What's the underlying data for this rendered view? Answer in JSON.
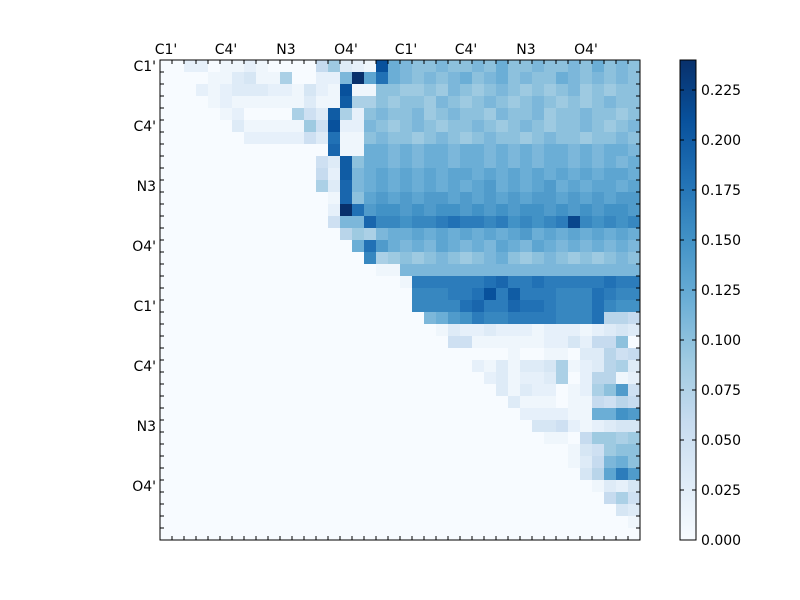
{
  "chart_data": {
    "type": "heatmap",
    "title": "",
    "xlabel": "",
    "ylabel": "",
    "rows": 40,
    "cols": 40,
    "x_tick_labels": [
      "C1'",
      "C4'",
      "N3",
      "O4'",
      "C1'",
      "C4'",
      "N3",
      "O4'"
    ],
    "y_tick_labels": [
      "C1'",
      "C4'",
      "N3",
      "O4'",
      "C1'",
      "C4'",
      "N3",
      "O4'"
    ],
    "tick_positions": [
      0,
      5,
      10,
      15,
      20,
      25,
      30,
      35
    ],
    "x_tick_axis_position": "top",
    "colorbar": {
      "colormap": "Blues",
      "vmin": 0.0,
      "vmax": 0.24,
      "ticks": [
        0.0,
        0.025,
        0.05,
        0.075,
        0.1,
        0.125,
        0.15,
        0.175,
        0.2,
        0.225
      ],
      "tick_labels": [
        "0.000",
        "0.025",
        "0.050",
        "0.075",
        "0.100",
        "0.125",
        "0.150",
        "0.175",
        "0.200",
        "0.225"
      ],
      "colors": [
        "#f7fbff",
        "#deebf7",
        "#c6dbef",
        "#9ecae1",
        "#6baed6",
        "#4292c6",
        "#2171b5",
        "#08519c",
        "#08306b"
      ]
    },
    "matrix_storage": "upper triangle only (lower triangle and diagonal are 0); rows_upper[i] holds values for columns i+1 .. 39",
    "rows_upper": [
      [
        0,
        0.02,
        0.02,
        0,
        0.01,
        0.01,
        0.02,
        0.01,
        0,
        0,
        0,
        0,
        0.06,
        0.09,
        0.03,
        0.02,
        0.01,
        0.21,
        0.12,
        0.11,
        0.1,
        0.1,
        0.11,
        0.1,
        0.1,
        0.11,
        0.1,
        0.12,
        0.1,
        0.1,
        0.11,
        0.1,
        0.1,
        0.11,
        0.1,
        0.12,
        0.1,
        0.11,
        0.1
      ],
      [
        0,
        0,
        0.01,
        0.01,
        0.03,
        0.04,
        0.01,
        0.01,
        0.08,
        0,
        0,
        0.02,
        0.02,
        0.11,
        0.24,
        0.13,
        0.18,
        0.12,
        0.11,
        0.1,
        0.11,
        0.1,
        0.11,
        0.12,
        0.1,
        0.11,
        0.12,
        0.1,
        0.11,
        0.1,
        0.1,
        0.12,
        0.11,
        0.1,
        0.11,
        0.1,
        0.11,
        0.1
      ],
      [
        0.02,
        0.01,
        0.02,
        0.03,
        0.03,
        0.03,
        0.02,
        0.02,
        0.01,
        0.04,
        0.02,
        0.01,
        0.21,
        0.01,
        0.01,
        0.1,
        0.1,
        0.09,
        0.09,
        0.1,
        0.09,
        0.11,
        0.1,
        0.09,
        0.1,
        0.11,
        0.1,
        0.09,
        0.1,
        0.09,
        0.1,
        0.11,
        0.09,
        0.1,
        0.09,
        0.1,
        0.1
      ],
      [
        0.01,
        0.02,
        0.01,
        0.01,
        0.01,
        0.01,
        0.01,
        0.01,
        0.03,
        0.01,
        0.01,
        0.2,
        0.08,
        0.08,
        0.1,
        0.09,
        0.1,
        0.1,
        0.09,
        0.11,
        0.1,
        0.09,
        0.1,
        0.11,
        0.1,
        0.09,
        0.1,
        0.11,
        0.1,
        0.09,
        0.1,
        0.09,
        0.1,
        0.11,
        0.1,
        0.1
      ],
      [
        0.01,
        0.02,
        0,
        0,
        0,
        0,
        0.08,
        0.05,
        0.03,
        0.2,
        0.08,
        0.02,
        0.1,
        0.11,
        0.1,
        0.1,
        0.11,
        0.09,
        0.1,
        0.11,
        0.1,
        0.1,
        0.09,
        0.11,
        0.1,
        0.1,
        0.11,
        0.09,
        0.1,
        0.1,
        0.11,
        0.1,
        0.1,
        0.09,
        0.1
      ],
      [
        0.03,
        0.01,
        0.01,
        0.01,
        0.01,
        0.01,
        0.09,
        0.05,
        0.21,
        0.02,
        0.02,
        0.11,
        0.1,
        0.09,
        0.1,
        0.11,
        0.1,
        0.09,
        0.1,
        0.1,
        0.11,
        0.1,
        0.09,
        0.1,
        0.11,
        0.1,
        0.09,
        0.1,
        0.1,
        0.11,
        0.1,
        0.09,
        0.1,
        0.11
      ],
      [
        0.02,
        0.02,
        0.02,
        0.02,
        0.02,
        0.05,
        0.03,
        0.18,
        0.01,
        0.01,
        0.1,
        0.11,
        0.1,
        0.1,
        0.09,
        0.1,
        0.11,
        0.1,
        0.09,
        0.1,
        0.11,
        0.1,
        0.1,
        0.09,
        0.1,
        0.11,
        0.1,
        0.1,
        0.09,
        0.1,
        0.1,
        0.11,
        0.1
      ],
      [
        0,
        0,
        0,
        0,
        0,
        0,
        0.19,
        0.01,
        0.01,
        0.12,
        0.12,
        0.11,
        0.12,
        0.11,
        0.12,
        0.12,
        0.11,
        0.12,
        0.12,
        0.11,
        0.12,
        0.11,
        0.12,
        0.11,
        0.12,
        0.12,
        0.11,
        0.12,
        0.11,
        0.12,
        0.12,
        0.11
      ],
      [
        0,
        0,
        0,
        0,
        0.05,
        0.03,
        0.2,
        0.1,
        0.12,
        0.12,
        0.11,
        0.12,
        0.11,
        0.12,
        0.12,
        0.11,
        0.12,
        0.12,
        0.11,
        0.12,
        0.11,
        0.12,
        0.11,
        0.12,
        0.12,
        0.11,
        0.12,
        0.11,
        0.12,
        0.11,
        0.12
      ],
      [
        0,
        0,
        0,
        0.06,
        0.02,
        0.2,
        0.11,
        0.12,
        0.13,
        0.12,
        0.13,
        0.12,
        0.13,
        0.12,
        0.13,
        0.13,
        0.12,
        0.13,
        0.12,
        0.13,
        0.12,
        0.13,
        0.12,
        0.13,
        0.12,
        0.13,
        0.12,
        0.13,
        0.13,
        0.12
      ],
      [
        0,
        0,
        0.08,
        0.03,
        0.19,
        0.11,
        0.12,
        0.13,
        0.12,
        0.13,
        0.12,
        0.13,
        0.12,
        0.13,
        0.12,
        0.13,
        0.14,
        0.12,
        0.13,
        0.12,
        0.13,
        0.14,
        0.12,
        0.13,
        0.12,
        0.13,
        0.13,
        0.12,
        0.13
      ],
      [
        0,
        0,
        0.01,
        0.19,
        0.1,
        0.13,
        0.14,
        0.13,
        0.14,
        0.13,
        0.14,
        0.14,
        0.13,
        0.14,
        0.13,
        0.14,
        0.13,
        0.14,
        0.13,
        0.14,
        0.14,
        0.13,
        0.14,
        0.13,
        0.14,
        0.13,
        0.14,
        0.14
      ],
      [
        0,
        0.02,
        0.24,
        0.18,
        0.14,
        0.15,
        0.15,
        0.14,
        0.15,
        0.14,
        0.15,
        0.15,
        0.14,
        0.15,
        0.14,
        0.15,
        0.14,
        0.15,
        0.15,
        0.14,
        0.15,
        0.14,
        0.15,
        0.14,
        0.15,
        0.15,
        0.14
      ],
      [
        0.05,
        0.11,
        0.11,
        0.19,
        0.16,
        0.16,
        0.15,
        0.16,
        0.16,
        0.17,
        0.18,
        0.17,
        0.17,
        0.16,
        0.17,
        0.15,
        0.16,
        0.15,
        0.16,
        0.17,
        0.22,
        0.16,
        0.15,
        0.16,
        0.15,
        0.16
      ],
      [
        0.07,
        0.09,
        0.08,
        0.11,
        0.12,
        0.12,
        0.13,
        0.12,
        0.13,
        0.12,
        0.13,
        0.12,
        0.13,
        0.12,
        0.13,
        0.14,
        0.12,
        0.13,
        0.12,
        0.13,
        0.12,
        0.13,
        0.12,
        0.13,
        0.12
      ],
      [
        0.12,
        0.18,
        0.14,
        0.12,
        0.11,
        0.12,
        0.11,
        0.13,
        0.12,
        0.11,
        0.12,
        0.11,
        0.13,
        0.12,
        0.11,
        0.13,
        0.12,
        0.11,
        0.12,
        0.11,
        0.12,
        0.11,
        0.12,
        0.11
      ],
      [
        0.16,
        0.08,
        0.09,
        0.1,
        0.09,
        0.1,
        0.11,
        0.1,
        0.09,
        0.1,
        0.11,
        0.12,
        0.1,
        0.09,
        0.1,
        0.11,
        0.1,
        0.09,
        0.1,
        0.09,
        0.1,
        0.11,
        0.1
      ],
      [
        0.01,
        0.01,
        0.11,
        0.11,
        0.11,
        0.11,
        0.11,
        0.11,
        0.11,
        0.11,
        0.11,
        0.11,
        0.11,
        0.11,
        0.11,
        0.11,
        0.11,
        0.11,
        0.11,
        0.11,
        0.11,
        0.11
      ],
      [
        0,
        0.01,
        0.17,
        0.17,
        0.17,
        0.17,
        0.17,
        0.17,
        0.18,
        0.19,
        0.17,
        0.17,
        0.18,
        0.17,
        0.17,
        0.17,
        0.17,
        0.17,
        0.18,
        0.17,
        0.17
      ],
      [
        0,
        0.16,
        0.16,
        0.16,
        0.17,
        0.17,
        0.18,
        0.21,
        0.17,
        0.2,
        0.17,
        0.17,
        0.17,
        0.16,
        0.16,
        0.16,
        0.18,
        0.17,
        0.16,
        0.16
      ],
      [
        0.16,
        0.16,
        0.16,
        0.16,
        0.18,
        0.19,
        0.17,
        0.17,
        0.19,
        0.18,
        0.18,
        0.17,
        0.16,
        0.16,
        0.16,
        0.18,
        0.16,
        0.15,
        0.15
      ],
      [
        0.11,
        0.12,
        0.14,
        0.15,
        0.17,
        0.16,
        0.16,
        0.17,
        0.17,
        0.17,
        0.17,
        0.16,
        0.16,
        0.16,
        0.18,
        0.07,
        0.07,
        0.06
      ],
      [
        0.01,
        0.03,
        0.02,
        0.02,
        0.03,
        0.02,
        0.02,
        0.02,
        0.01,
        0.02,
        0.02,
        0.02,
        0.01,
        0.02,
        0.03,
        0.04,
        0.03
      ],
      [
        0.05,
        0.05,
        0.01,
        0.01,
        0.01,
        0.01,
        0.01,
        0.01,
        0.02,
        0.02,
        0.04,
        0.02,
        0.06,
        0.06,
        0.1
      ],
      [
        0,
        0,
        0,
        0,
        0.01,
        0,
        0,
        0.01,
        0.01,
        0,
        0.03,
        0.03,
        0.07,
        0.05,
        0.06
      ],
      [
        0.02,
        0.01,
        0.03,
        0.01,
        0.03,
        0.03,
        0.04,
        0.08,
        0.01,
        0.02,
        0.03,
        0.07,
        0.08,
        0.03
      ],
      [
        0.02,
        0.03,
        0.01,
        0.02,
        0.02,
        0.03,
        0.08,
        0,
        0.02,
        0.07,
        0.07,
        0.01,
        0.02
      ],
      [
        0.03,
        0.01,
        0.03,
        0.02,
        0.02,
        0,
        0.01,
        0.02,
        0.08,
        0.1,
        0.14,
        0.05
      ],
      [
        0.03,
        0.01,
        0.01,
        0.01,
        0,
        0.01,
        0.01,
        0.06,
        0.05,
        0.07,
        0.06
      ],
      [
        0.02,
        0.02,
        0.02,
        0.02,
        0.01,
        0.01,
        0.12,
        0.12,
        0.15,
        0.14
      ],
      [
        0.04,
        0.04,
        0.05,
        0.02,
        0.01,
        0.02,
        0.03,
        0.04,
        0.04
      ],
      [
        0.01,
        0.01,
        0,
        0.06,
        0.09,
        0.09,
        0.08,
        0.09
      ],
      [
        0,
        0.01,
        0.04,
        0.05,
        0.09,
        0.1,
        0.1
      ],
      [
        0.01,
        0.03,
        0.06,
        0.11,
        0.12,
        0.1
      ],
      [
        0.04,
        0.07,
        0.13,
        0.17,
        0.14
      ],
      [
        0.01,
        0.03,
        0.02,
        0.04
      ],
      [
        0.06,
        0.08,
        0.05
      ],
      [
        0.04,
        0.03
      ],
      [
        0.01
      ]
    ]
  }
}
